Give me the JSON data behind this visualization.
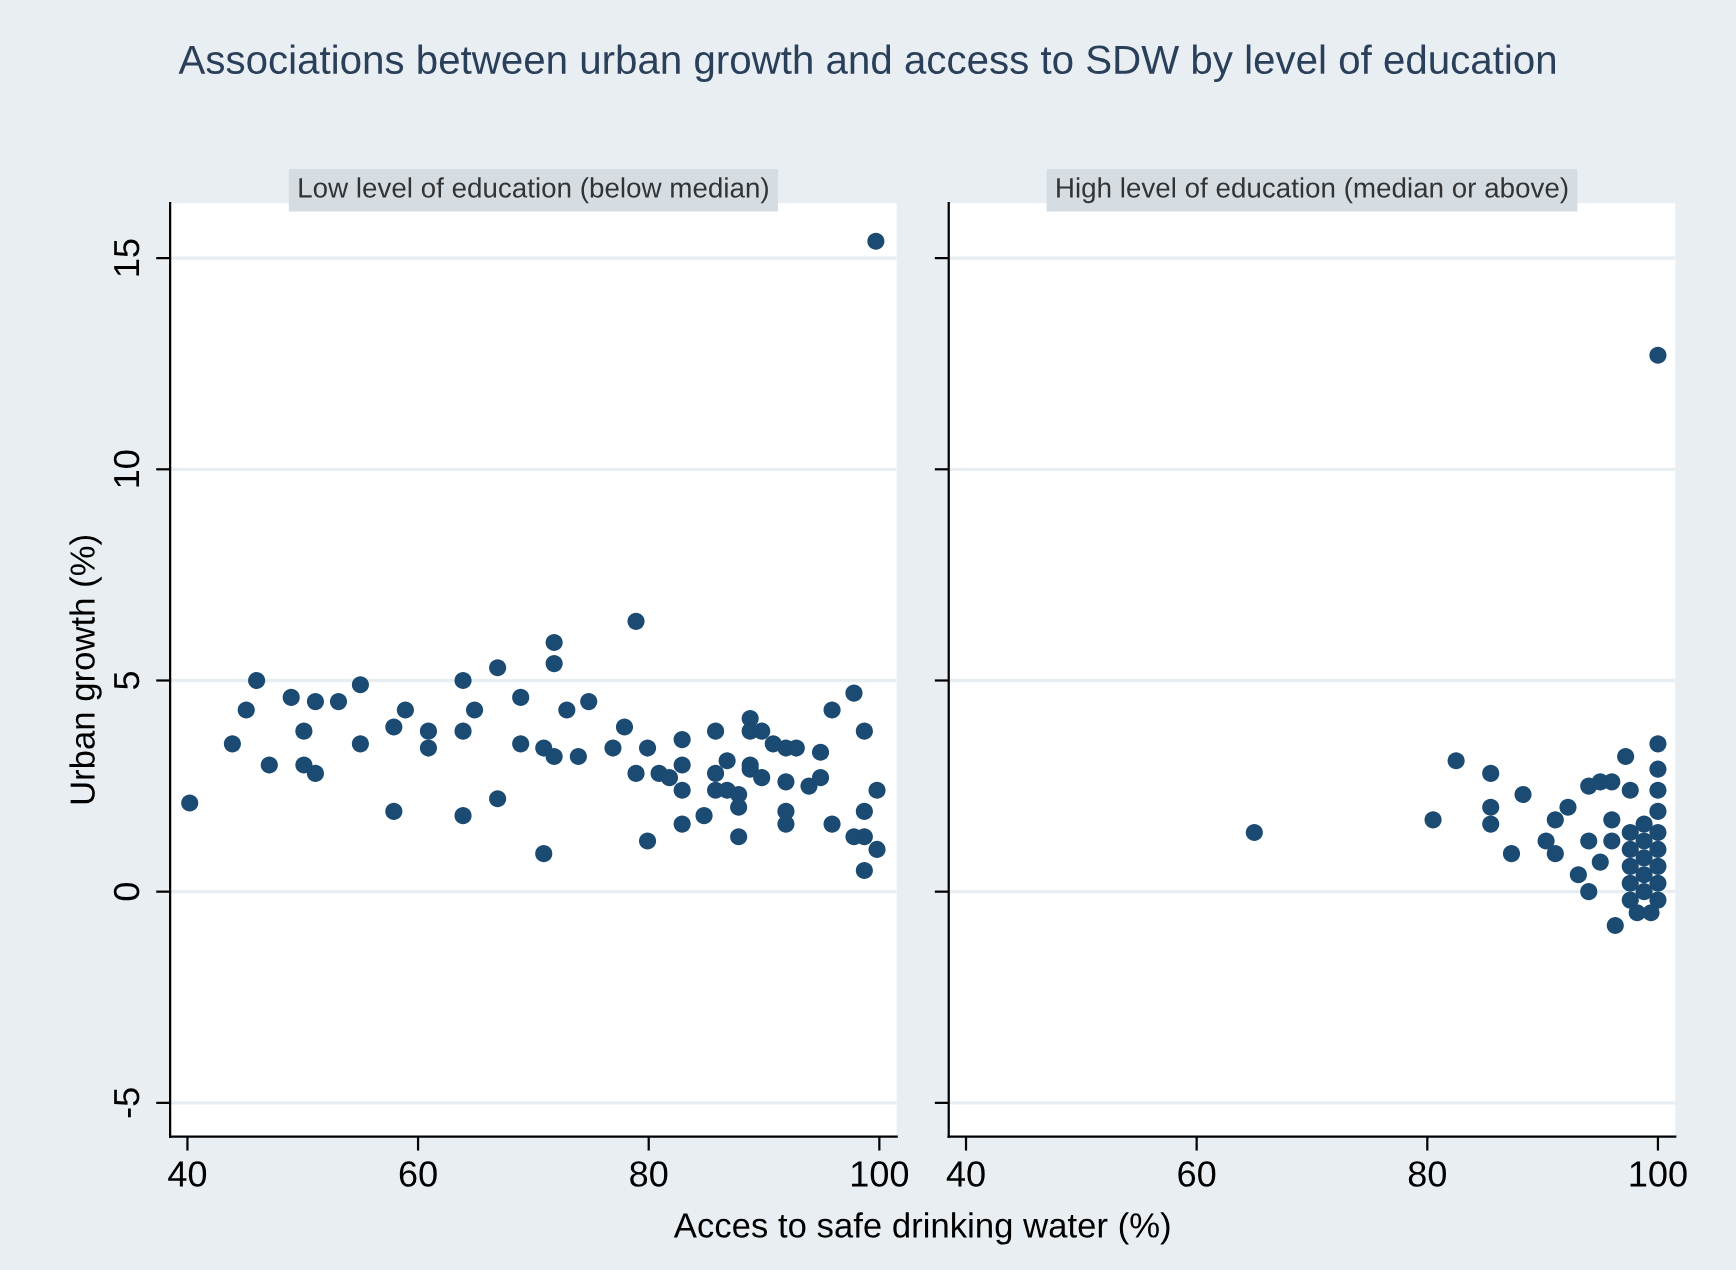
{
  "chart_data": [
    {
      "type": "scatter",
      "title": "Associations between urban growth and access to SDW by level of education",
      "subtitle": "Low level of education (below median)",
      "xlabel": "Acces to safe drinking water (%)",
      "ylabel": "Urban growth (%)",
      "xlim": [
        38.5,
        101.5
      ],
      "ylim": [
        -5.8,
        16.3
      ],
      "xticks": [
        40,
        60,
        80,
        100
      ],
      "yticks": [
        -5,
        0,
        5,
        10,
        15
      ],
      "grid": "y",
      "marker": "circle",
      "series": [
        {
          "color": "#1b4a73",
          "x": [
            40.2,
            43.9,
            45.1,
            46.0,
            47.1,
            49.0,
            50.1,
            50.1,
            51.1,
            51.1,
            53.1,
            55.0,
            55.0,
            57.9,
            57.9,
            58.9,
            60.9,
            60.9,
            63.9,
            63.9,
            63.9,
            64.9,
            66.9,
            66.9,
            68.9,
            68.9,
            70.9,
            70.9,
            71.8,
            71.8,
            71.8,
            72.9,
            73.9,
            74.8,
            76.9,
            77.9,
            78.9,
            78.9,
            79.9,
            79.9,
            80.9,
            81.8,
            82.9,
            82.9,
            82.9,
            82.9,
            84.8,
            85.8,
            85.8,
            85.8,
            86.8,
            86.8,
            87.8,
            87.8,
            87.8,
            88.8,
            88.8,
            88.8,
            88.8,
            89.8,
            89.8,
            90.8,
            91.9,
            91.9,
            91.9,
            91.9,
            92.8,
            93.9,
            94.9,
            94.9,
            95.9,
            95.9,
            97.8,
            97.8,
            98.7,
            98.7,
            98.7,
            98.7,
            99.8,
            99.8,
            99.7
          ],
          "values": [
            2.1,
            3.5,
            4.3,
            5.0,
            3.0,
            4.6,
            3.8,
            3.0,
            4.5,
            2.8,
            4.5,
            4.9,
            3.5,
            3.9,
            1.9,
            4.3,
            3.8,
            3.4,
            5.0,
            3.8,
            1.8,
            4.3,
            5.3,
            2.2,
            4.6,
            3.5,
            3.4,
            0.9,
            5.9,
            5.4,
            3.2,
            4.3,
            3.2,
            4.5,
            3.4,
            3.9,
            6.4,
            2.8,
            3.4,
            1.2,
            2.8,
            2.7,
            3.6,
            3.0,
            2.4,
            1.6,
            1.8,
            3.8,
            2.8,
            2.4,
            3.1,
            2.4,
            2.3,
            2.0,
            1.3,
            4.1,
            3.8,
            3.0,
            2.9,
            3.8,
            2.7,
            3.5,
            3.4,
            2.6,
            1.9,
            1.6,
            3.4,
            2.5,
            3.3,
            2.7,
            4.3,
            1.6,
            4.7,
            1.3,
            3.8,
            1.9,
            1.3,
            0.5,
            2.4,
            1.0,
            15.4
          ]
        }
      ]
    },
    {
      "type": "scatter",
      "subtitle": "High level of education (median or above)",
      "xlim": [
        38.5,
        101.5
      ],
      "ylim": [
        -5.8,
        16.3
      ],
      "xticks": [
        40,
        60,
        80,
        100
      ],
      "yticks": [
        -5,
        0,
        5,
        10,
        15
      ],
      "grid": "y",
      "marker": "circle",
      "tick_labels": "x",
      "series": [
        {
          "color": "#1b4a73",
          "x": [
            65.0,
            80.5,
            82.5,
            85.5,
            85.5,
            85.5,
            87.3,
            88.3,
            90.3,
            91.1,
            91.1,
            92.2,
            93.1,
            94.0,
            94.0,
            94.0,
            95.0,
            95.0,
            96.0,
            96.0,
            96.0,
            96.3,
            97.2,
            97.6,
            98.2,
            99.4,
            100,
            100,
            100,
            100,
            100,
            100,
            100,
            100,
            100,
            100,
            97.6,
            97.6,
            97.6,
            97.6,
            97.6,
            98.8,
            98.8,
            98.8,
            98.8,
            98.8
          ],
          "values": [
            1.4,
            1.7,
            3.1,
            2.8,
            2.0,
            1.6,
            0.9,
            2.3,
            1.2,
            0.9,
            1.7,
            2.0,
            0.4,
            2.5,
            1.2,
            0.0,
            2.6,
            0.7,
            2.6,
            1.7,
            1.2,
            -0.8,
            3.2,
            2.4,
            -0.5,
            -0.5,
            12.7,
            3.5,
            2.9,
            2.4,
            1.9,
            1.4,
            1.0,
            0.6,
            0.2,
            -0.2,
            1.4,
            1.0,
            0.6,
            0.2,
            -0.2,
            1.6,
            1.2,
            0.8,
            0.4,
            0.0
          ]
        }
      ]
    }
  ]
}
